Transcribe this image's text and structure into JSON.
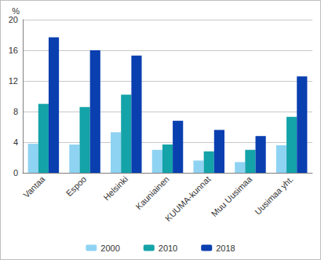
{
  "chart_data": {
    "type": "bar",
    "ylabel": "%",
    "categories": [
      "Vantaa",
      "Espoo",
      "Helsinki",
      "Kauniainen",
      "KUUMA-kunnat",
      "Muu Uusimaa",
      "Uusimaa yht."
    ],
    "series": [
      {
        "name": "2000",
        "color": "#8fd3f3",
        "values": [
          3.8,
          3.7,
          5.3,
          3.0,
          1.6,
          1.4,
          3.6
        ]
      },
      {
        "name": "2010",
        "color": "#14a3a8",
        "values": [
          9.0,
          8.6,
          10.2,
          3.7,
          2.8,
          3.0,
          7.3
        ]
      },
      {
        "name": "2018",
        "color": "#0a3fb0",
        "values": [
          17.7,
          16.0,
          15.3,
          6.8,
          5.6,
          4.8,
          12.6
        ]
      }
    ],
    "ylim": [
      0,
      20
    ],
    "yticks": [
      0,
      4,
      8,
      12,
      16,
      20
    ],
    "grid": true,
    "legend": "bottom"
  }
}
